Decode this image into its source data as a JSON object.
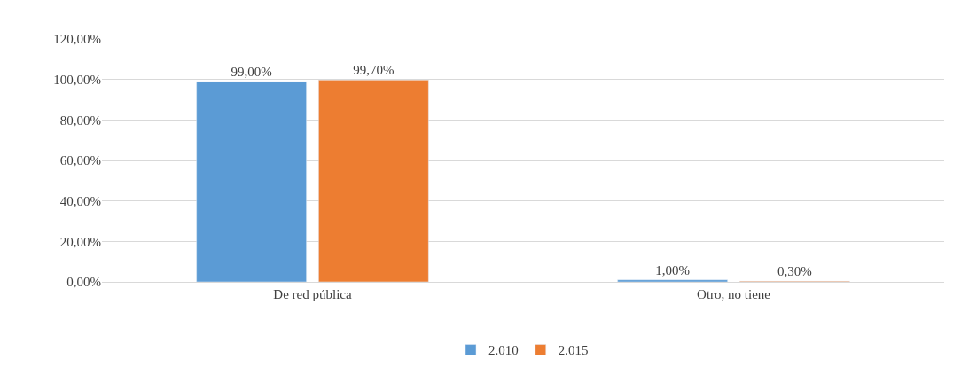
{
  "chart_data": {
    "type": "bar",
    "categories": [
      "De red pública",
      "Otro, no tiene"
    ],
    "series": [
      {
        "name": "2.010",
        "color": "#5b9bd5",
        "values": [
          99.0,
          1.0
        ],
        "value_labels": [
          "99,00%",
          "1,00%"
        ]
      },
      {
        "name": "2.015",
        "color": "#ed7d31",
        "values": [
          99.7,
          0.3
        ],
        "value_labels": [
          "99,70%",
          "0,30%"
        ]
      }
    ],
    "ylim": [
      0,
      120
    ],
    "yticks": [
      {
        "value": 0,
        "label": "0,00%"
      },
      {
        "value": 20,
        "label": "20,00%"
      },
      {
        "value": 40,
        "label": "40,00%"
      },
      {
        "value": 60,
        "label": "60,00%"
      },
      {
        "value": 80,
        "label": "80,00%"
      },
      {
        "value": 100,
        "label": "100,00%"
      },
      {
        "value": 120,
        "label": "120,00%"
      }
    ],
    "grid": "y",
    "legend": "bottom"
  }
}
